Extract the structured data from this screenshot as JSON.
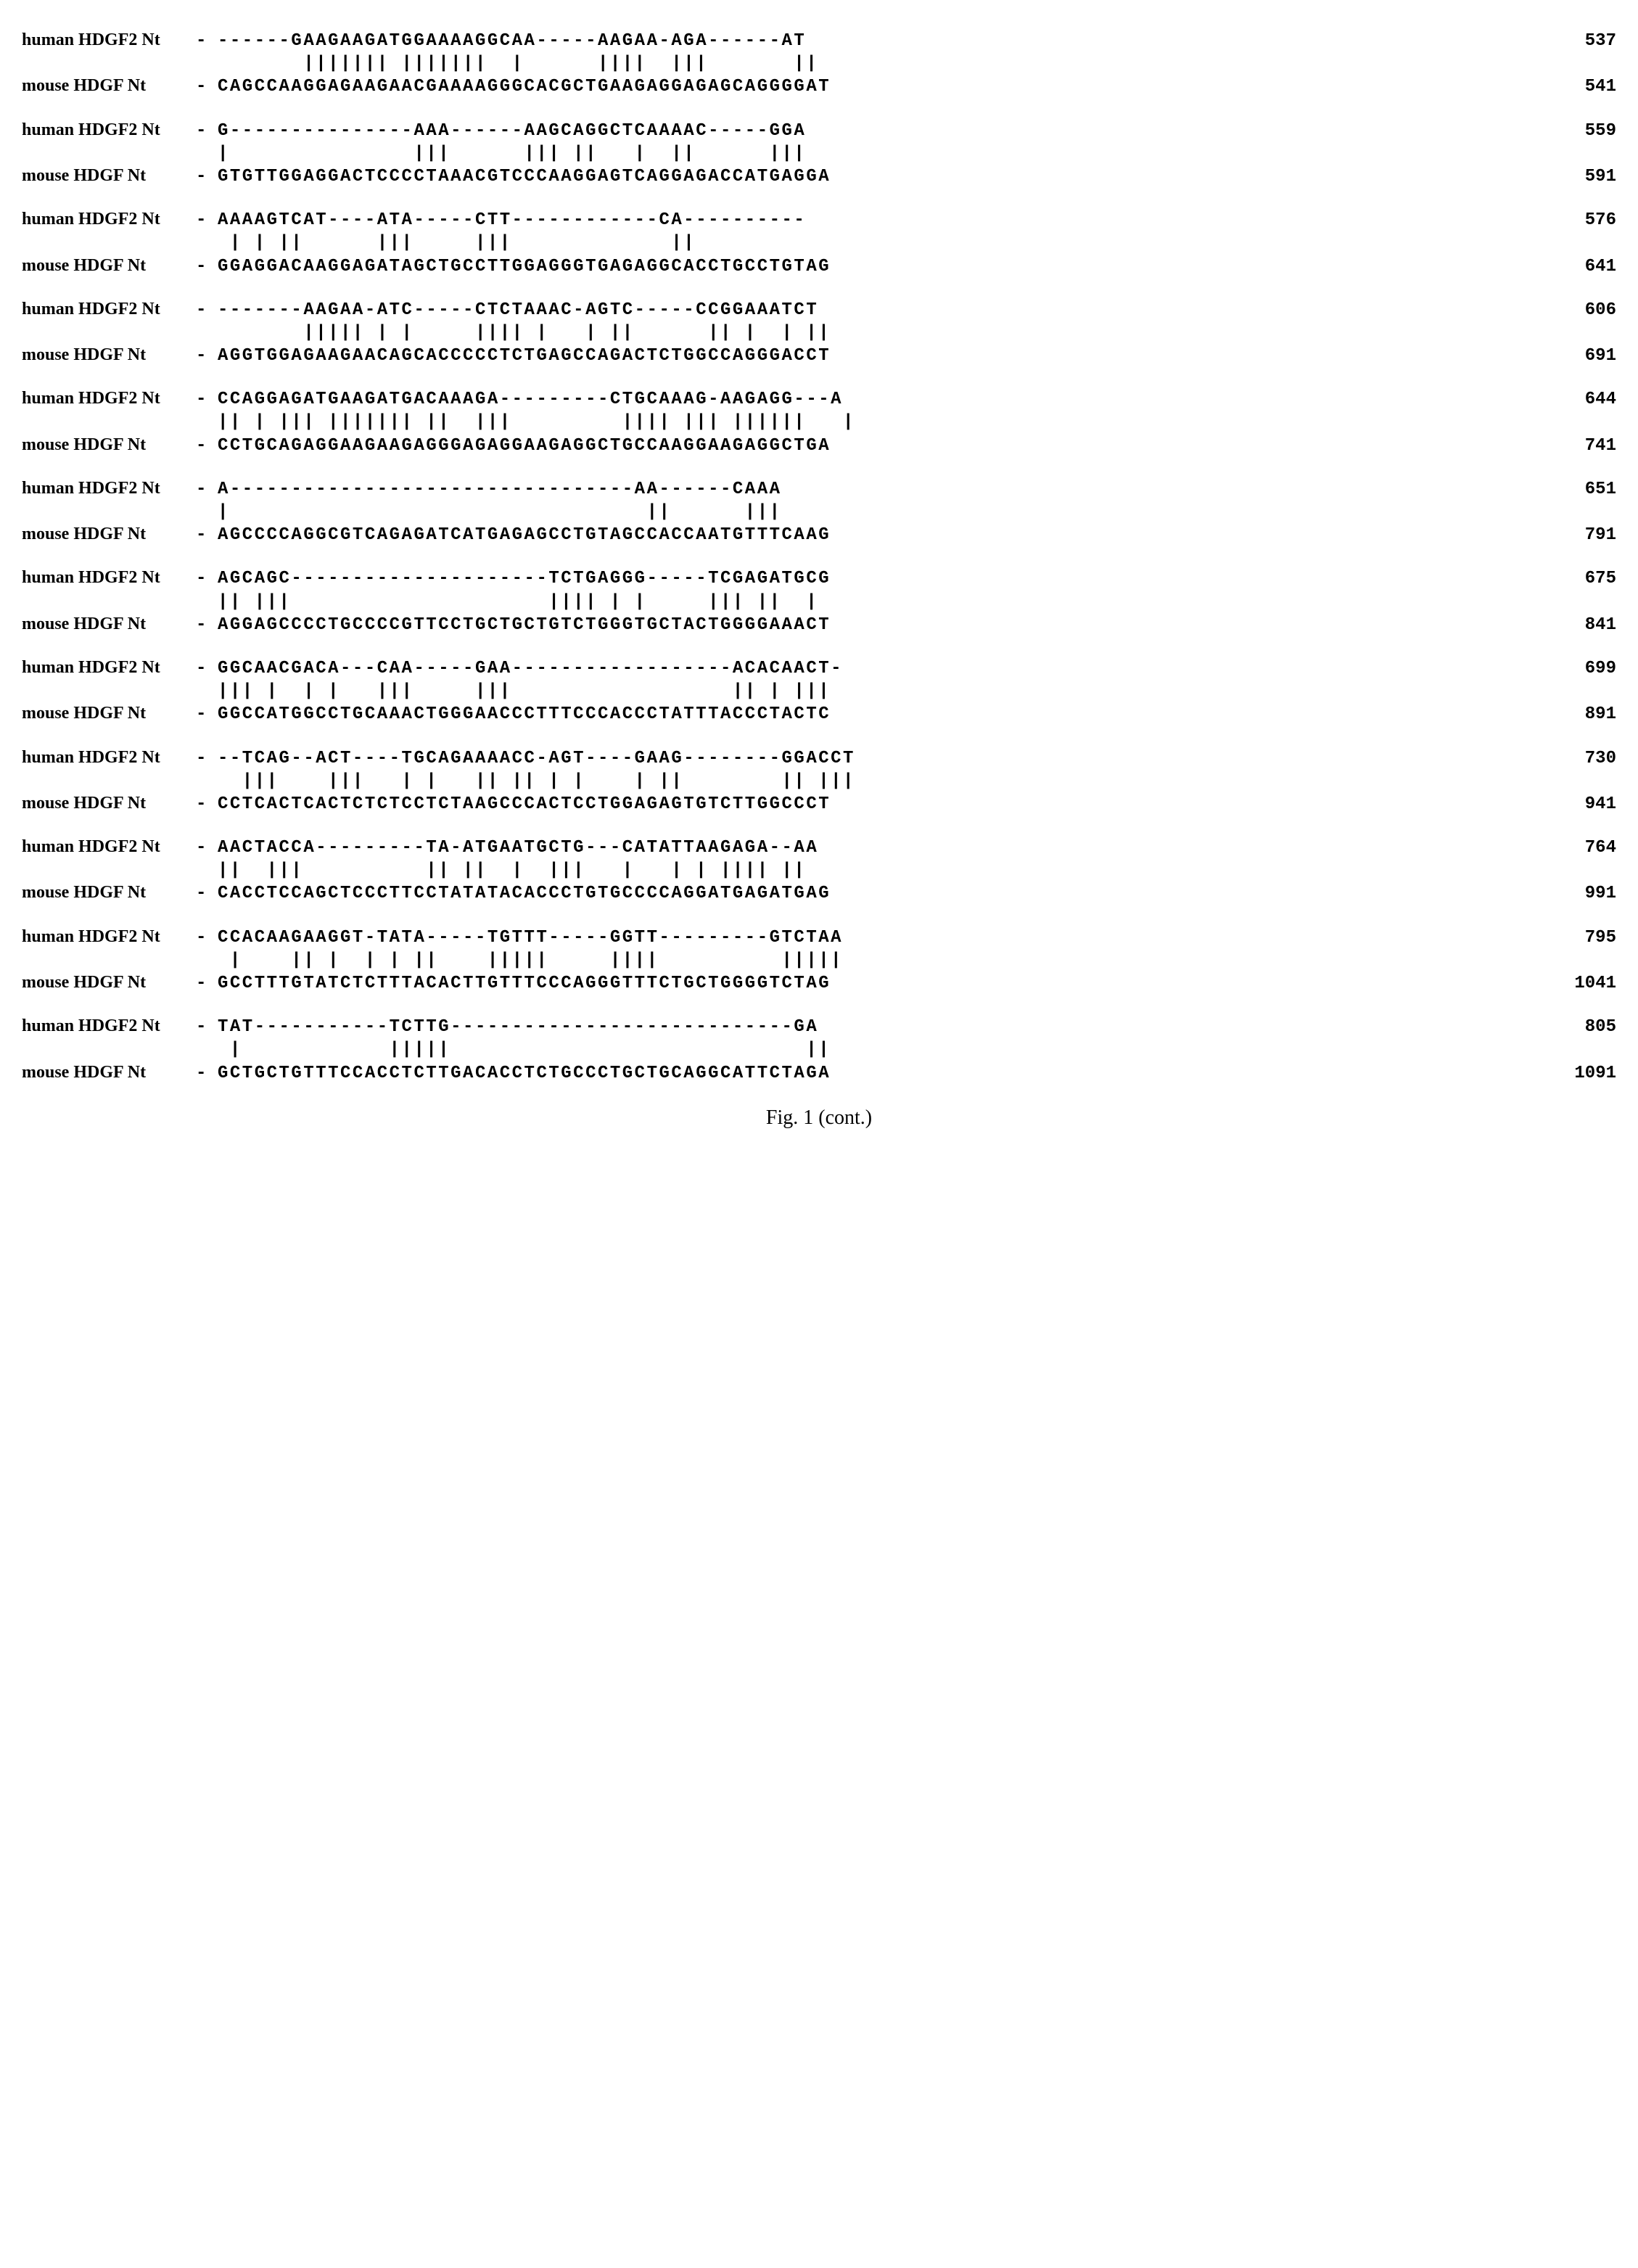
{
  "caption": "Fig. 1 (cont.)",
  "labels": {
    "human": "human HDGF2 Nt",
    "mouse": "mouse HDGF Nt",
    "dash": "-"
  },
  "blocks": [
    {
      "human_seq": "------GAAGAAGATGGAAAAGGCAA-----AAGAA-AGA------AT",
      "match": "       ||||||| |||||||  |      ||||  |||       ||",
      "mouse_seq": "CAGCCAAGGAGAAGAACGAAAAGGGCACGCTGAAGAGGAGAGCAGGGGAT",
      "human_num": "537",
      "mouse_num": "541"
    },
    {
      "human_seq": "G---------------AAA------AAGCAGGCTCAAAAC-----GGA",
      "match": "|               |||      ||| ||   |  ||      |||",
      "mouse_seq": "GTGTTGGAGGACTCCCCTAAACGTCCCAAGGAGTCAGGAGACCATGAGGA",
      "human_num": "559",
      "mouse_num": "591"
    },
    {
      "human_seq": "AAAAGTCAT----ATA-----CTT------------CA----------",
      "match": " | | ||      |||     |||             ||",
      "mouse_seq": "GGAGGACAAGGAGATAGCTGCCTTGGAGGGTGAGAGGCACCTGCCTGTAG",
      "human_num": "576",
      "mouse_num": "641"
    },
    {
      "human_seq": "-------AAGAA-ATC-----CTCTAAAC-AGTC-----CCGGAAATCT",
      "match": "       ||||| | |     |||| |   | ||      || |  | ||",
      "mouse_seq": "AGGTGGAGAAGAACAGCACCCCCTCTGAGCCAGACTCTGGCCAGGGACCT",
      "human_num": "606",
      "mouse_num": "691"
    },
    {
      "human_seq": "CCAGGAGATGAAGATGACAAAGA---------CTGCAAAG-AAGAGG---A",
      "match": "|| | ||| ||||||| ||  |||         |||| ||| ||||||   |",
      "mouse_seq": "CCTGCAGAGGAAGAAGAGGGAGAGGAAGAGGCTGCCAAGGAAGAGGCTGA",
      "human_num": "644",
      "mouse_num": "741"
    },
    {
      "human_seq": "A---------------------------------AA------CAAA",
      "match": "|                                  ||      |||",
      "mouse_seq": "AGCCCCAGGCGTCAGAGATCATGAGAGCCTGTAGCCACCAATGTTTCAAG",
      "human_num": "651",
      "mouse_num": "791"
    },
    {
      "human_seq": "AGCAGC---------------------TCTGAGGG-----TCGAGATGCG",
      "match": "|| |||                     |||| | |     ||| ||  | ",
      "mouse_seq": "AGGAGCCCCTGCCCCGTTCCTGCTGCTGTCTGGGTGCTACTGGGGAAACT",
      "human_num": "675",
      "mouse_num": "841"
    },
    {
      "human_seq": "GGCAACGACA---CAA-----GAA------------------ACACAACT-",
      "match": "||| |  | |   |||     |||                  || | |||",
      "mouse_seq": "GGCCATGGCCTGCAAACTGGGAACCCTTTCCCACCCTATTTACCCTACTC",
      "human_num": "699",
      "mouse_num": "891"
    },
    {
      "human_seq": "--TCAG--ACT----TGCAGAAAACC-AGT----GAAG--------GGACCT",
      "match": "  |||    |||   | |   || || | |    | ||        || |||",
      "mouse_seq": "CCTCACTCACTCTCTCCTCTAAGCCCACTCCTGGAGAGTGTCTTGGCCCT",
      "human_num": "730",
      "mouse_num": "941"
    },
    {
      "human_seq": "AACTACCA---------TA-ATGAATGCTG---CATATTAAGAGA--AA",
      "match": "||  |||          || ||  |  |||   |   | | |||| ||",
      "mouse_seq": "CACCTCCAGCTCCCTTCCTATATACACCCTGTGCCCCAGGATGAGATGAG",
      "human_num": "764",
      "mouse_num": "991"
    },
    {
      "human_seq": "CCACAAGAAGGT-TATA-----TGTTT-----GGTT---------GTCTAA",
      "match": " |    || |  | | ||    |||||     ||||          |||||",
      "mouse_seq": "GCCTTTGTATCTCTTTACACTTGTTTCCCAGGGTTTCTGCTGGGGTCTAG",
      "human_num": "795",
      "mouse_num": "1041"
    },
    {
      "human_seq": "TAT-----------TCTTG----------------------------GA",
      "match": " |            |||||                             ||",
      "mouse_seq": "GCTGCTGTTTCCACCTCTTGACACCTCTGCCCTGCTGCAGGCATTCTAGA",
      "human_num": "805",
      "mouse_num": "1091"
    }
  ]
}
